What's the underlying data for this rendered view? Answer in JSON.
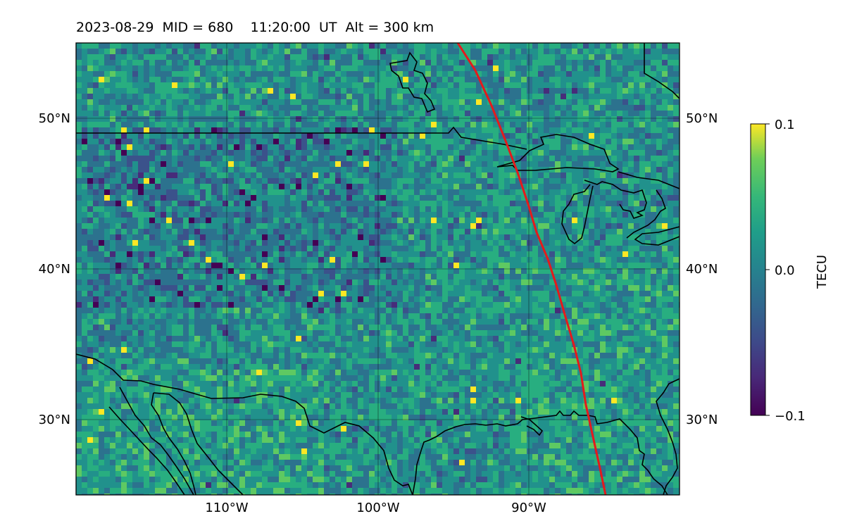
{
  "title": "2023-08-29  MID = 680    11:20:00  UT  Alt = 300 km",
  "map": {
    "lat_labels": [
      "50°N",
      "40°N",
      "30°N"
    ],
    "lon_labels": [
      "110°W",
      "100°W",
      "90°W"
    ],
    "field": "TEC perturbation",
    "colormap": "viridis",
    "gridlines": true,
    "coastlines_color": "#000000",
    "terminator_color": "#e41a1c"
  },
  "colorbar": {
    "label": "TECU",
    "ticks": [
      "0.1",
      "0.0",
      "−0.1"
    ],
    "vmin": -0.1,
    "vmax": 0.1
  }
}
